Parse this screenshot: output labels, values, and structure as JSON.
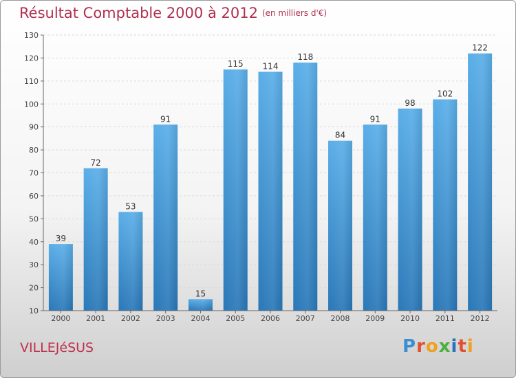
{
  "header": {
    "title": "Résultat Comptable 2000 à 2012",
    "unit": "(en milliers d'€)"
  },
  "footer": {
    "town": "VILLEJéSUS",
    "logo": "Proxiti",
    "logo_letters": [
      {
        "char": "P",
        "color": "#3a8fd0"
      },
      {
        "char": "r",
        "color": "#e05030"
      },
      {
        "char": "o",
        "color": "#f0a020"
      },
      {
        "char": "x",
        "color": "#4ab040"
      },
      {
        "char": "i",
        "color": "#2a70c0"
      },
      {
        "char": "t",
        "color": "#e05030"
      },
      {
        "char": "i",
        "color": "#f0a020"
      }
    ]
  },
  "chart_data": {
    "type": "bar",
    "title": "Résultat Comptable 2000 à 2012",
    "subtitle": "(en milliers d'€)",
    "categories": [
      "2000",
      "2001",
      "2002",
      "2003",
      "2004",
      "2005",
      "2006",
      "2007",
      "2008",
      "2009",
      "2010",
      "2011",
      "2012"
    ],
    "values": [
      39,
      72,
      53,
      91,
      15,
      115,
      114,
      118,
      84,
      91,
      98,
      102,
      122
    ],
    "ylim": [
      10,
      130
    ],
    "yticks": [
      10,
      20,
      30,
      40,
      50,
      60,
      70,
      80,
      90,
      100,
      110,
      120,
      130
    ],
    "grid": true,
    "bar_color": "#4a9ee0"
  }
}
